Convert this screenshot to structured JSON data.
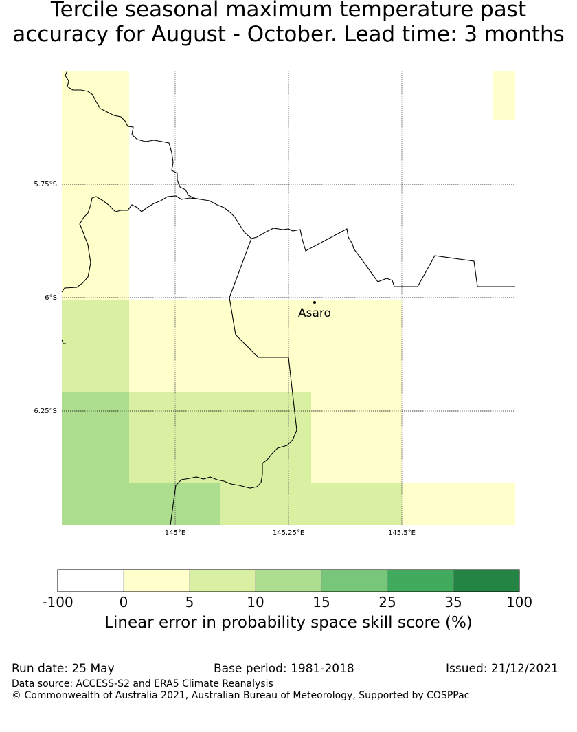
{
  "title": {
    "line1": "Tercile seasonal maximum temperature past",
    "line2": "accuracy for August - October. Lead time: 3 months"
  },
  "map": {
    "lat_labels": [
      "5.75°S",
      "6°S",
      "6.25°S"
    ],
    "lon_labels": [
      "145°E",
      "145.25°E",
      "145.5°E"
    ],
    "place": "Asaro",
    "grid_cells": [
      {
        "row": 0,
        "col": 0,
        "bin": 1
      },
      {
        "row": 0,
        "col": 1,
        "bin": 0
      },
      {
        "row": 0,
        "col": 2,
        "bin": 0
      },
      {
        "row": 0,
        "col": 3,
        "bin": 0
      },
      {
        "row": 0,
        "col": 4,
        "bin": 0
      },
      {
        "row": 0,
        "col": 5,
        "bin": 0
      },
      {
        "row": 1,
        "col": 0,
        "bin": 1
      },
      {
        "row": 1,
        "col": 1,
        "bin": 0
      },
      {
        "row": 1,
        "col": 2,
        "bin": 0
      },
      {
        "row": 1,
        "col": 3,
        "bin": 0
      },
      {
        "row": 1,
        "col": 4,
        "bin": 0
      },
      {
        "row": 1,
        "col": 5,
        "bin": 0
      },
      {
        "row": 2,
        "col": 0,
        "bin": 2
      },
      {
        "row": 2,
        "col": 1,
        "bin": 1
      },
      {
        "row": 2,
        "col": 2,
        "bin": 1
      },
      {
        "row": 2,
        "col": 3,
        "bin": 1
      },
      {
        "row": 2,
        "col": 4,
        "bin": 0
      },
      {
        "row": 2,
        "col": 5,
        "bin": 0
      },
      {
        "row": 3,
        "col": 0,
        "bin": 3
      },
      {
        "row": 3,
        "col": 1,
        "bin": 2
      },
      {
        "row": 3,
        "col": 2,
        "bin": 2
      },
      {
        "row": 3,
        "col": 3,
        "bin": 1
      },
      {
        "row": 3,
        "col": 4,
        "bin": 0
      },
      {
        "row": 3,
        "col": 5,
        "bin": 0
      },
      {
        "row": 4,
        "col": 0,
        "bin": 3
      },
      {
        "row": 4,
        "col": 1,
        "bin": 3
      },
      {
        "row": 4,
        "col": 2,
        "bin": 2
      },
      {
        "row": 4,
        "col": 3,
        "bin": 2
      },
      {
        "row": 4,
        "col": 4,
        "bin": 1
      },
      {
        "row": 4,
        "col": 5,
        "bin": 1
      }
    ],
    "edge_cell_bin": 1
  },
  "colorbar": {
    "ticks": [
      "-100",
      "0",
      "5",
      "10",
      "15",
      "25",
      "35",
      "100"
    ],
    "colors": [
      "#ffffff",
      "#ffffcc",
      "#d9f0a3",
      "#addd8e",
      "#78c679",
      "#41ab5d",
      "#238443"
    ],
    "label": "Linear error in probability space skill score (%)"
  },
  "footer": {
    "run_date": "Run date: 25 May",
    "base_period": "Base period: 1981-2018",
    "issued": "Issued: 21/12/2021",
    "data_source": "Data source: ACCESS-S2 and ERA5 Climate Reanalysis",
    "copyright": "© Commonwealth of Australia 2021, Australian Bureau of Meteorology, Supported by COSPPac"
  }
}
